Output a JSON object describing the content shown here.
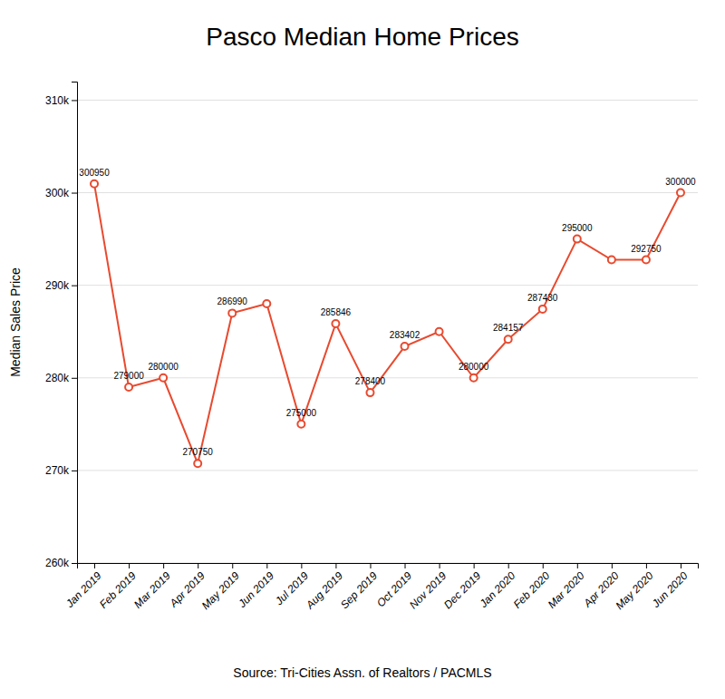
{
  "chart_data": {
    "type": "line",
    "title": "Pasco Median Home Prices",
    "y_label": "Median Sales Price",
    "annotations": [
      "Source: Tri-Cities Assn. of Realtors / PACMLS"
    ],
    "categories": [
      "Jan 2019",
      "Feb 2019",
      "Mar 2019",
      "Apr 2019",
      "May 2019",
      "Jun 2019",
      "Jul 2019",
      "Aug 2019",
      "Sep 2019",
      "Oct 2019",
      "Nov 2019",
      "Dec 2019",
      "Jan 2020",
      "Feb 2020",
      "Mar 2020",
      "Apr 2020",
      "May 2020",
      "Jun 2020"
    ],
    "values": [
      300950,
      279000,
      280000,
      270750,
      286990,
      288000,
      275000,
      285846,
      278400,
      283402,
      285000,
      280000,
      284157,
      287430,
      295000,
      292750,
      292750,
      300000
    ],
    "value_labels": [
      "300950",
      "279000",
      "280000",
      "270750",
      "286990",
      null,
      "275000",
      "285846",
      "278400",
      "283402",
      null,
      "280000",
      "284157",
      "287430",
      "295000",
      null,
      "292750",
      "300000"
    ],
    "data_labels": true,
    "color": "#E84A2F",
    "marker": "circle",
    "ylim": [
      260000,
      312000
    ],
    "yticks": [
      {
        "value": 260000,
        "label": "260k"
      },
      {
        "value": 270000,
        "label": "270k"
      },
      {
        "value": 280000,
        "label": "280k"
      },
      {
        "value": 290000,
        "label": "290k"
      },
      {
        "value": 300000,
        "label": "300k"
      },
      {
        "value": 310000,
        "label": "310k"
      }
    ],
    "grid": true
  }
}
